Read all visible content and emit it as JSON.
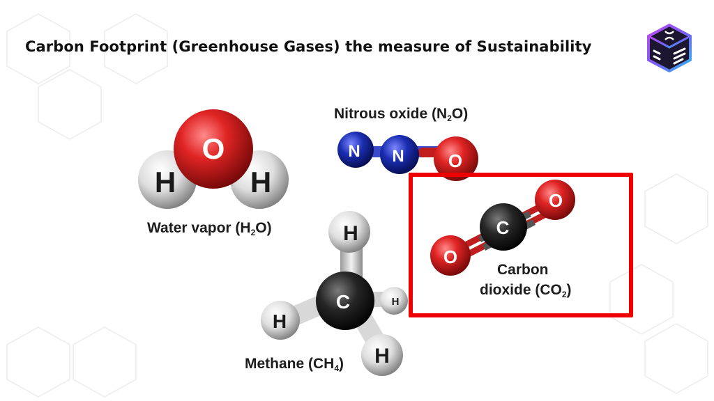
{
  "slide": {
    "title": "Carbon Footprint (Greenhouse Gases) the measure of Sustainability"
  },
  "colors": {
    "oxygen": "#d42020",
    "hydrogen": "#e8e8e8",
    "nitrogen": "#1a2db0",
    "carbon": "#1e1e1e",
    "highlight_border": "#ee0000",
    "hexagon_outline": "#ececec"
  },
  "logo": {
    "icon": "cube-dna-logo-icon"
  },
  "molecules": {
    "water": {
      "name_text": "Water vapor (H",
      "subscript": "2",
      "name_suffix": "O)",
      "atoms": [
        "O",
        "H",
        "H"
      ]
    },
    "nitrous_oxide": {
      "name_text": "Nitrous oxide (N",
      "subscript": "2",
      "name_suffix": "O)",
      "atoms": [
        "N",
        "N",
        "O"
      ]
    },
    "methane": {
      "name_text": "Methane (CH",
      "subscript": "4",
      "name_suffix": ")",
      "atoms": [
        "C",
        "H",
        "H",
        "H",
        "H"
      ]
    },
    "carbon_dioxide": {
      "name_line1": "Carbon",
      "name_text": "dioxide (CO",
      "subscript": "2",
      "name_suffix": ")",
      "atoms": [
        "O",
        "C",
        "O"
      ],
      "highlighted": true
    }
  }
}
